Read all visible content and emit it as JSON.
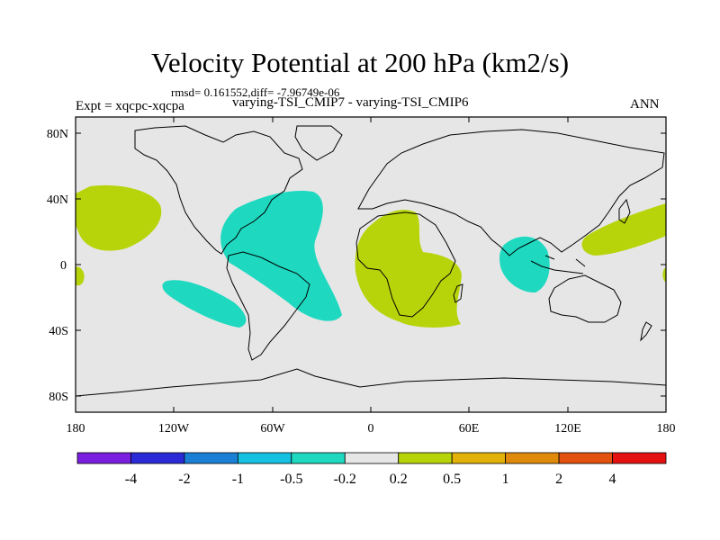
{
  "title": "Velocity Potential at 200 hPa (km2/s)",
  "stats_line": "rmsd= 0.161552,diff= -7.96749e-06",
  "experiment_label": "Expt = xqcpc-xqcpa",
  "comparison_label": "varying-TSI_CMIP7 - varying-TSI_CMIP6",
  "season": "ANN",
  "map": {
    "background_color": "#e6e6e6",
    "positive_anomaly_color": "#b7d40b",
    "negative_anomaly_color": "#1ed9c0",
    "lat_tick_labels": [
      "80N",
      "40N",
      "0",
      "40S",
      "80S"
    ],
    "lon_tick_labels": [
      "180",
      "120W",
      "60W",
      "0",
      "60E",
      "120E",
      "180"
    ]
  },
  "colorbar": {
    "colors": [
      "#7a1fe0",
      "#2a2ad6",
      "#1b7fd6",
      "#16c0e0",
      "#1ed9c0",
      "#e6e6e6",
      "#b7d40b",
      "#e2b20a",
      "#e08a0c",
      "#e2520e",
      "#e51010"
    ],
    "labels": [
      "-4",
      "-2",
      "-1",
      "-0.5",
      "-0.2",
      "0.2",
      "0.5",
      "1",
      "2",
      "4"
    ]
  }
}
